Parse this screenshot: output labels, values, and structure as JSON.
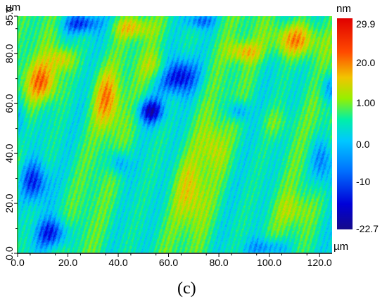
{
  "chart_data": {
    "type": "heatmap",
    "x_unit": "µm",
    "y_unit": "µm",
    "xlim": [
      0,
      125
    ],
    "ylim": [
      0,
      95
    ],
    "x_ticks": [
      "0.0",
      "20.0",
      "40.0",
      "60.0",
      "80.0",
      "100.0",
      "120.0"
    ],
    "x_tick_values": [
      0,
      20,
      40,
      60,
      80,
      100,
      120
    ],
    "y_ticks": [
      "0.0",
      "20.0",
      "40.0",
      "60.0",
      "80.0",
      "95.0"
    ],
    "y_tick_values": [
      0,
      20,
      40,
      60,
      80,
      95
    ],
    "colorbar": {
      "unit": "nm",
      "labels": [
        "29.9",
        "20.0",
        "1.00",
        "0.0",
        "-10",
        "-22.7"
      ],
      "max": 29.9,
      "min": -22.7,
      "colors": [
        "#1a0a8c",
        "#0000e6",
        "#0070ff",
        "#00c8ff",
        "#00f0a0",
        "#8ef000",
        "#f0c800",
        "#ff5a00",
        "#e60000"
      ]
    },
    "features": {
      "dominant_level": "near 0 nm (green)",
      "stripe_direction": "diagonal, lower-left to upper-right",
      "high_regions": "red patches in upper-left and upper-right, streaks in lower center",
      "low_regions": "dark blue pits in upper-center and along edges"
    }
  },
  "caption": "(c)"
}
